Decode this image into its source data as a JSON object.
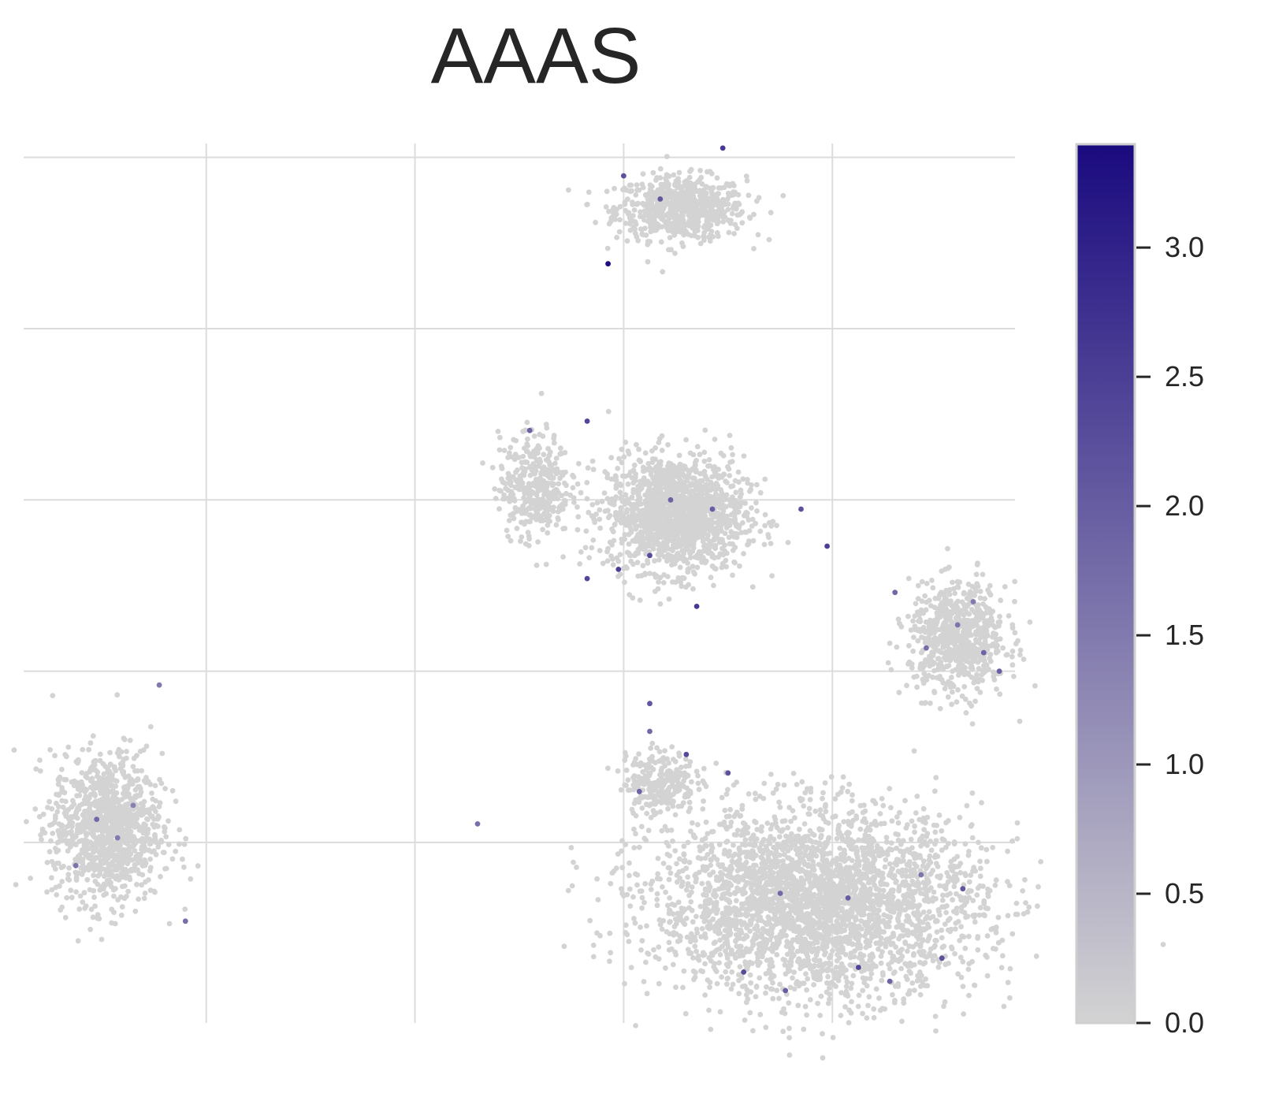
{
  "chart_data": {
    "type": "scatter",
    "title": "AAAS",
    "xlabel": "",
    "ylabel": "",
    "grid": true,
    "axis_ticks_labeled": false,
    "colors": {
      "low": "#d3d3d3",
      "high": "#1a0a7f",
      "grid": "#dcdcdc",
      "text": "#262626"
    },
    "colorbar": {
      "min": 0.0,
      "max": 3.4,
      "ticks": [
        0.0,
        0.5,
        1.0,
        1.5,
        2.0,
        2.5,
        3.0
      ],
      "tick_labels": [
        "0.0",
        "0.5",
        "1.0",
        "1.5",
        "2.0",
        "2.5",
        "3.0"
      ]
    },
    "xlim": [
      -6.0,
      13.0
    ],
    "ylim": [
      -6.0,
      13.0
    ],
    "clusters": [
      {
        "name": "top-cluster",
        "cx": 6.6,
        "cy": 11.6,
        "sx": 1.0,
        "sy": 0.55,
        "n": 700
      },
      {
        "name": "center-cluster",
        "cx": 6.5,
        "cy": 5.0,
        "sx": 1.05,
        "sy": 1.0,
        "n": 1500
      },
      {
        "name": "center-left-cluster",
        "cx": 3.8,
        "cy": 5.6,
        "sx": 0.55,
        "sy": 0.9,
        "n": 380
      },
      {
        "name": "right-cluster",
        "cx": 11.9,
        "cy": 2.3,
        "sx": 0.75,
        "sy": 0.95,
        "n": 700
      },
      {
        "name": "bottom-right-cluster",
        "cx": 9.2,
        "cy": -3.4,
        "sx": 2.5,
        "sy": 1.6,
        "n": 3200
      },
      {
        "name": "bottom-left-cluster",
        "cx": -4.4,
        "cy": -1.8,
        "sx": 0.85,
        "sy": 1.3,
        "n": 1100
      },
      {
        "name": "small-center-cluster",
        "cx": 6.2,
        "cy": -0.8,
        "sx": 0.55,
        "sy": 0.55,
        "n": 260
      }
    ],
    "highlighted_cells": [
      {
        "x": 5.2,
        "y": 10.4,
        "value": 3.3
      },
      {
        "x": 5.5,
        "y": 12.3,
        "value": 2.2
      },
      {
        "x": 6.2,
        "y": 11.8,
        "value": 2.1
      },
      {
        "x": 7.4,
        "y": 12.9,
        "value": 2.6
      },
      {
        "x": 4.8,
        "y": 7.0,
        "value": 2.4
      },
      {
        "x": 5.4,
        "y": 3.8,
        "value": 2.5
      },
      {
        "x": 6.0,
        "y": 4.1,
        "value": 2.3
      },
      {
        "x": 6.4,
        "y": 5.3,
        "value": 1.9
      },
      {
        "x": 7.2,
        "y": 5.1,
        "value": 2.0
      },
      {
        "x": 6.9,
        "y": 3.0,
        "value": 2.6
      },
      {
        "x": 4.8,
        "y": 3.6,
        "value": 2.4
      },
      {
        "x": 8.9,
        "y": 5.1,
        "value": 2.2
      },
      {
        "x": 9.4,
        "y": 4.3,
        "value": 2.5
      },
      {
        "x": 10.7,
        "y": 3.3,
        "value": 1.8
      },
      {
        "x": 11.3,
        "y": 2.1,
        "value": 1.7
      },
      {
        "x": 11.9,
        "y": 2.6,
        "value": 1.6
      },
      {
        "x": 12.4,
        "y": 2.0,
        "value": 1.9
      },
      {
        "x": 12.7,
        "y": 1.6,
        "value": 2.0
      },
      {
        "x": 12.2,
        "y": 3.1,
        "value": 1.5
      },
      {
        "x": 6.0,
        "y": 0.3,
        "value": 1.8
      },
      {
        "x": 6.0,
        "y": 0.9,
        "value": 2.1
      },
      {
        "x": 5.8,
        "y": -1.0,
        "value": 1.9
      },
      {
        "x": 6.7,
        "y": -0.2,
        "value": 2.3
      },
      {
        "x": 7.5,
        "y": -0.6,
        "value": 2.2
      },
      {
        "x": 2.7,
        "y": -1.7,
        "value": 1.7
      },
      {
        "x": 8.5,
        "y": -3.2,
        "value": 1.8
      },
      {
        "x": 9.8,
        "y": -3.3,
        "value": 2.0
      },
      {
        "x": 11.2,
        "y": -2.8,
        "value": 1.6
      },
      {
        "x": 10.0,
        "y": -4.8,
        "value": 2.4
      },
      {
        "x": 11.6,
        "y": -4.6,
        "value": 2.2
      },
      {
        "x": 12.0,
        "y": -3.1,
        "value": 2.1
      },
      {
        "x": 7.8,
        "y": -4.9,
        "value": 2.3
      },
      {
        "x": 8.6,
        "y": -5.3,
        "value": 2.0
      },
      {
        "x": 10.6,
        "y": -5.1,
        "value": 1.9
      },
      {
        "x": -4.6,
        "y": -1.6,
        "value": 1.8
      },
      {
        "x": -4.2,
        "y": -2.0,
        "value": 1.5
      },
      {
        "x": -5.0,
        "y": -2.6,
        "value": 1.6
      },
      {
        "x": -3.9,
        "y": -1.3,
        "value": 1.4
      },
      {
        "x": -2.9,
        "y": -3.8,
        "value": 1.7
      },
      {
        "x": -3.4,
        "y": 1.3,
        "value": 1.5
      },
      {
        "x": 3.7,
        "y": 6.8,
        "value": 1.9
      }
    ]
  }
}
